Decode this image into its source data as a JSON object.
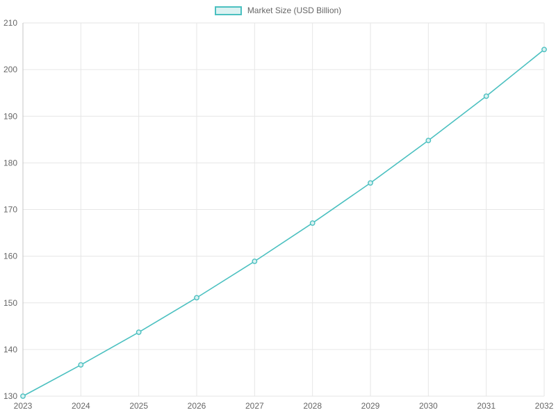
{
  "chart_data": {
    "type": "line",
    "title": "",
    "legend": "Market Size (USD Billion)",
    "legend_position": "top-center",
    "grid": true,
    "categories": [
      "2023",
      "2024",
      "2025",
      "2026",
      "2027",
      "2028",
      "2029",
      "2030",
      "2031",
      "2032"
    ],
    "series": [
      {
        "name": "Market Size (USD Billion)",
        "values": [
          130.0,
          136.7,
          143.7,
          151.1,
          158.9,
          167.1,
          175.7,
          184.8,
          194.3,
          204.3
        ]
      }
    ],
    "xlabel": "",
    "ylabel": "",
    "ylim": [
      130,
      210
    ],
    "y_ticks": [
      130,
      140,
      150,
      160,
      170,
      180,
      190,
      200,
      210
    ],
    "colors": {
      "line": "#4bc0c0",
      "point_fill": "#d9f1f1",
      "legend_fill": "#dcf2f2",
      "grid": "#e6e6e6",
      "axis_line": "#c4c4c4",
      "text": "#666666",
      "background": "#ffffff"
    }
  }
}
